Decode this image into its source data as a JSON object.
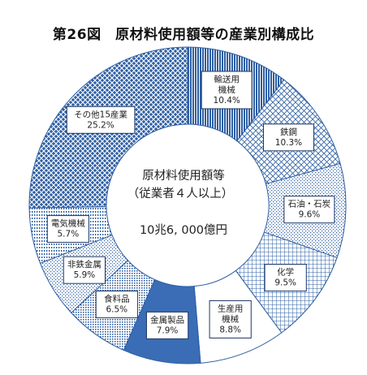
{
  "title": "第26図　原材料使用額等の産業別構成比",
  "chart_data": {
    "type": "pie",
    "title": "第26図　原材料使用額等の産業別構成比",
    "center_text": [
      "原材料使用額等",
      "（従業者４人以上）",
      "10兆6, 000億円"
    ],
    "slices": [
      {
        "label": [
          "輸送用",
          "機械"
        ],
        "value_label": "10.4%",
        "value": 10.4,
        "pattern": "hatch-dense-v",
        "color": "#2e5fa3"
      },
      {
        "label": [
          "鉄鋼"
        ],
        "value_label": "10.3%",
        "value": 10.3,
        "pattern": "hatch-cross",
        "color": "#2e5fa3"
      },
      {
        "label": [
          "石油・石炭"
        ],
        "value_label": "9.6%",
        "value": 9.6,
        "pattern": "dots-sparse",
        "color": "#2e5fa3"
      },
      {
        "label": [
          "化学"
        ],
        "value_label": "9.5%",
        "value": 9.5,
        "pattern": "grid",
        "color": "#2e5fa3"
      },
      {
        "label": [
          "生産用",
          "機械"
        ],
        "value_label": "8.8%",
        "value": 8.8,
        "pattern": "plain-white",
        "color": "#2e5fa3"
      },
      {
        "label": [
          "金属製品"
        ],
        "value_label": "7.9%",
        "value": 7.9,
        "pattern": "solid",
        "color": "#2e5fa3"
      },
      {
        "label": [
          "食料品"
        ],
        "value_label": "6.5%",
        "value": 6.5,
        "pattern": "dots-dense",
        "color": "#2e5fa3"
      },
      {
        "label": [
          "非鉄金属"
        ],
        "value_label": "5.9%",
        "value": 5.9,
        "pattern": "dots-sparse",
        "color": "#2e5fa3"
      },
      {
        "label": [
          "電気機械"
        ],
        "value_label": "5.7%",
        "value": 5.7,
        "pattern": "vert-dots",
        "color": "#2e5fa3"
      },
      {
        "label": [
          "その他15産業"
        ],
        "value_label": "25.2%",
        "value": 25.2,
        "pattern": "crosshatch-blue",
        "color": "#2e5fa3"
      }
    ]
  }
}
